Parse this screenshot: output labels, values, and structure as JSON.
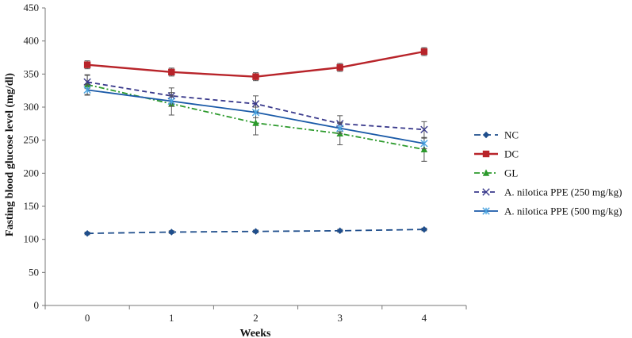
{
  "chart_data": {
    "type": "line",
    "title": "",
    "xlabel": "Weeks",
    "ylabel": "Fasting blood glucose level (mg/dl)",
    "x": [
      0,
      1,
      2,
      3,
      4
    ],
    "xlim": [
      -0.5,
      4.5
    ],
    "ylim": [
      0,
      450
    ],
    "yticks": [
      0,
      50,
      100,
      150,
      200,
      250,
      300,
      350,
      400,
      450
    ],
    "grid": false,
    "legend_position": "right",
    "series": [
      {
        "name": "NC",
        "values": [
          109,
          111,
          112,
          113,
          115
        ],
        "errors": [
          2,
          2,
          2,
          2,
          2
        ],
        "color": "#1f4e8c",
        "dash": "8,5",
        "marker": "diamond"
      },
      {
        "name": "DC",
        "values": [
          364,
          353,
          346,
          360,
          384
        ],
        "errors": [
          6,
          6,
          6,
          6,
          6
        ],
        "color": "#b8242a",
        "dash": "",
        "marker": "square"
      },
      {
        "name": "GL",
        "values": [
          334,
          305,
          276,
          260,
          236
        ],
        "errors": [
          15,
          17,
          18,
          17,
          18
        ],
        "color": "#2d9a2d",
        "dash": "7,3,2,3",
        "marker": "triangle"
      },
      {
        "name": "A. nilotica PPE (250 mg/kg)",
        "values": [
          338,
          317,
          305,
          275,
          266
        ],
        "errors": [
          10,
          12,
          12,
          12,
          12
        ],
        "color": "#3a3a8c",
        "dash": "6,4",
        "marker": "x"
      },
      {
        "name": "A. nilotica PPE (500 mg/kg)",
        "values": [
          326,
          309,
          292,
          268,
          245
        ],
        "errors": [
          8,
          8,
          8,
          8,
          8
        ],
        "color": "#1a5aa8",
        "dash": "",
        "marker": "star"
      }
    ]
  }
}
